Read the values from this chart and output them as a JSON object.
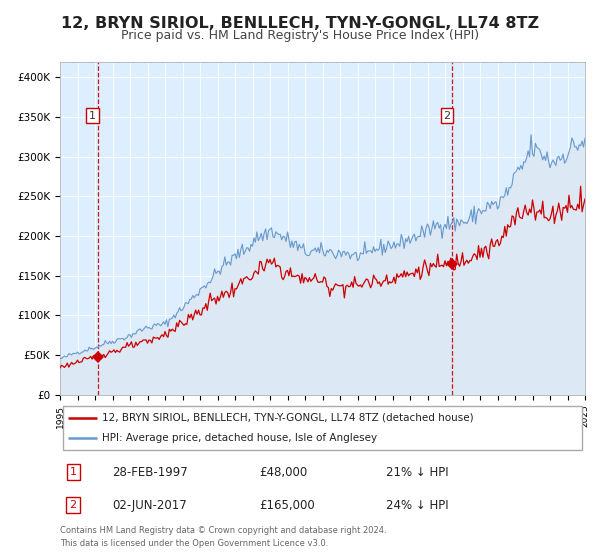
{
  "title": "12, BRYN SIRIOL, BENLLECH, TYN-Y-GONGL, LL74 8TZ",
  "subtitle": "Price paid vs. HM Land Registry's House Price Index (HPI)",
  "title_fontsize": 11.5,
  "subtitle_fontsize": 9,
  "hpi_color": "#6699cc",
  "hpi_fill_color": "#dde8f5",
  "price_color": "#cc0000",
  "marker_color": "#cc0000",
  "background_color": "#ffffff",
  "plot_bg_color": "#ddeeff",
  "grid_color": "#ffffff",
  "purchase1_year": 1997.16,
  "purchase1_price": 48000,
  "purchase1_label": "1",
  "purchase2_year": 2017.42,
  "purchase2_price": 165000,
  "purchase2_label": "2",
  "xmin": 1995,
  "xmax": 2025,
  "ymin": 0,
  "ymax": 420000,
  "yticks": [
    0,
    50000,
    100000,
    150000,
    200000,
    250000,
    300000,
    350000,
    400000
  ],
  "ytick_labels": [
    "£0",
    "£50K",
    "£100K",
    "£150K",
    "£200K",
    "£250K",
    "£300K",
    "£350K",
    "£400K"
  ],
  "legend_line1": "12, BRYN SIRIOL, BENLLECH, TYN-Y-GONGL, LL74 8TZ (detached house)",
  "legend_line2": "HPI: Average price, detached house, Isle of Anglesey",
  "note1_label": "1",
  "note1_date": "28-FEB-1997",
  "note1_price": "£48,000",
  "note1_pct": "21% ↓ HPI",
  "note2_label": "2",
  "note2_date": "02-JUN-2017",
  "note2_price": "£165,000",
  "note2_pct": "24% ↓ HPI",
  "footer1": "Contains HM Land Registry data © Crown copyright and database right 2024.",
  "footer2": "This data is licensed under the Open Government Licence v3.0."
}
